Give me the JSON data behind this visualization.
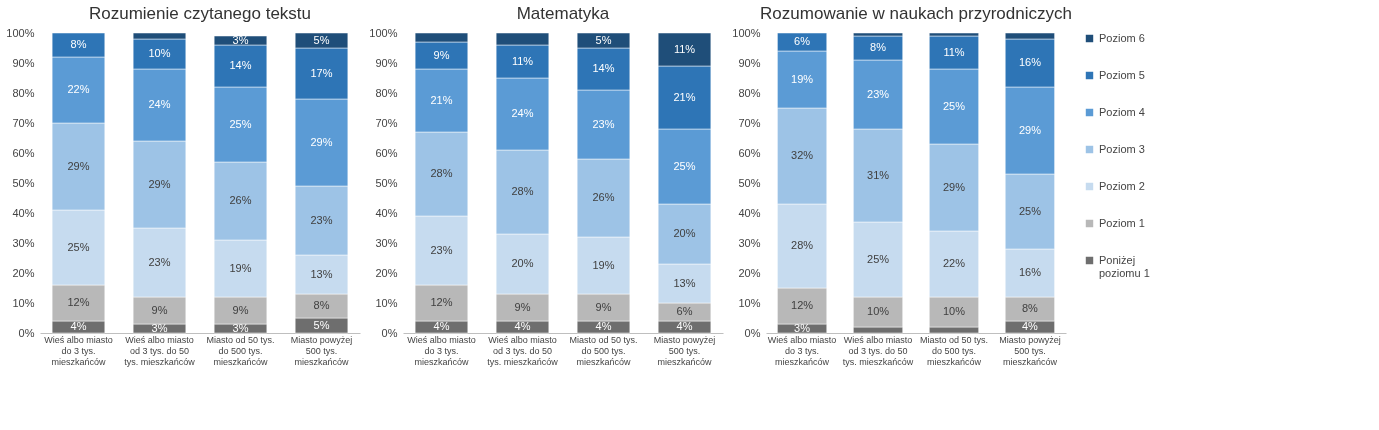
{
  "chart_data": [
    {
      "type": "bar",
      "stacked": true,
      "title": "Rozumienie czytanego tekstu",
      "grid": false,
      "categories": [
        "Wieś albo miasto do 3 tys. mieszkańców",
        "Wieś albo miasto od 3 tys. do 50 tys. mieszkańców",
        "Miasto od 50 tys. do 500 tys. mieszkańców",
        "Miasto powyżej 500 tys. mieszkańców"
      ],
      "ylim": [
        0,
        100
      ],
      "yticks": [
        {
          "value": 0,
          "label": "0%"
        },
        {
          "value": 10,
          "label": "10%"
        },
        {
          "value": 20,
          "label": "20%"
        },
        {
          "value": 30,
          "label": "30%"
        },
        {
          "value": 40,
          "label": "40%"
        },
        {
          "value": 50,
          "label": "50%"
        },
        {
          "value": 60,
          "label": "60%"
        },
        {
          "value": 70,
          "label": "70%"
        },
        {
          "value": 80,
          "label": "80%"
        },
        {
          "value": 90,
          "label": "90%"
        },
        {
          "value": 100,
          "label": "100%"
        }
      ],
      "series": [
        {
          "color": "#6e6e6e",
          "values": [
            4,
            3,
            3,
            5
          ],
          "value_labels": [
            "4%",
            "3%",
            "3%",
            "5%"
          ]
        },
        {
          "color": "#b8b8b8",
          "values": [
            12,
            9,
            9,
            8
          ],
          "value_labels": [
            "12%",
            "9%",
            "9%",
            "8%"
          ]
        },
        {
          "color": "#c6dbef",
          "values": [
            25,
            23,
            19,
            13
          ],
          "value_labels": [
            "25%",
            "23%",
            "19%",
            "13%"
          ]
        },
        {
          "color": "#9dc3e6",
          "values": [
            29,
            29,
            26,
            23
          ],
          "value_labels": [
            "29%",
            "29%",
            "26%",
            "23%"
          ]
        },
        {
          "color": "#5b9bd5",
          "values": [
            22,
            24,
            25,
            29
          ],
          "value_labels": [
            "22%",
            "24%",
            "25%",
            "29%"
          ]
        },
        {
          "color": "#2e75b6",
          "values": [
            8,
            10,
            14,
            17
          ],
          "value_labels": [
            "8%",
            "10%",
            "14%",
            "17%"
          ]
        },
        {
          "color": "#1f4e79",
          "values": [
            null,
            2,
            3,
            5
          ],
          "value_labels": [
            null,
            null,
            "3%",
            "5%"
          ]
        }
      ]
    },
    {
      "type": "bar",
      "stacked": true,
      "title": "Matematyka",
      "grid": false,
      "categories": [
        "Wieś albo miasto do 3 tys. mieszkańców",
        "Wieś albo miasto od 3 tys. do 50 tys. mieszkańców",
        "Miasto od 50 tys. do 500 tys. mieszkańców",
        "Miasto powyżej 500 tys. mieszkańców"
      ],
      "ylim": [
        0,
        100
      ],
      "yticks": [
        {
          "value": 0,
          "label": "0%"
        },
        {
          "value": 10,
          "label": "10%"
        },
        {
          "value": 20,
          "label": "20%"
        },
        {
          "value": 30,
          "label": "30%"
        },
        {
          "value": 40,
          "label": "40%"
        },
        {
          "value": 50,
          "label": "50%"
        },
        {
          "value": 60,
          "label": "60%"
        },
        {
          "value": 70,
          "label": "70%"
        },
        {
          "value": 80,
          "label": "80%"
        },
        {
          "value": 90,
          "label": "90%"
        },
        {
          "value": 100,
          "label": "100%"
        }
      ],
      "series": [
        {
          "color": "#6e6e6e",
          "values": [
            4,
            4,
            4,
            4
          ],
          "value_labels": [
            "4%",
            "4%",
            "4%",
            "4%"
          ]
        },
        {
          "color": "#b8b8b8",
          "values": [
            12,
            9,
            9,
            6
          ],
          "value_labels": [
            "12%",
            "9%",
            "9%",
            "6%"
          ]
        },
        {
          "color": "#c6dbef",
          "values": [
            23,
            20,
            19,
            13
          ],
          "value_labels": [
            "23%",
            "20%",
            "19%",
            "13%"
          ]
        },
        {
          "color": "#9dc3e6",
          "values": [
            28,
            28,
            26,
            20
          ],
          "value_labels": [
            "28%",
            "28%",
            "26%",
            "20%"
          ]
        },
        {
          "color": "#5b9bd5",
          "values": [
            21,
            24,
            23,
            25
          ],
          "value_labels": [
            "21%",
            "24%",
            "23%",
            "25%"
          ]
        },
        {
          "color": "#2e75b6",
          "values": [
            9,
            11,
            14,
            21
          ],
          "value_labels": [
            "9%",
            "11%",
            "14%",
            "21%"
          ]
        },
        {
          "color": "#1f4e79",
          "values": [
            3,
            4,
            5,
            11
          ],
          "value_labels": [
            null,
            null,
            "5%",
            "11%"
          ]
        }
      ]
    },
    {
      "type": "bar",
      "stacked": true,
      "title": "Rozumowanie w naukach przyrodniczych",
      "legend": "right",
      "grid": false,
      "categories": [
        "Wieś albo miasto do 3 tys. mieszkańców",
        "Wieś albo miasto od 3 tys. do 50 tys. mieszkańców",
        "Miasto od 50 tys. do 500 tys. mieszkańców",
        "Miasto powyżej 500 tys. mieszkańców"
      ],
      "ylim": [
        0,
        100
      ],
      "yticks": [
        {
          "value": 0,
          "label": "0%"
        },
        {
          "value": 10,
          "label": "10%"
        },
        {
          "value": 20,
          "label": "20%"
        },
        {
          "value": 30,
          "label": "30%"
        },
        {
          "value": 40,
          "label": "40%"
        },
        {
          "value": 50,
          "label": "50%"
        },
        {
          "value": 60,
          "label": "60%"
        },
        {
          "value": 70,
          "label": "70%"
        },
        {
          "value": 80,
          "label": "80%"
        },
        {
          "value": 90,
          "label": "90%"
        },
        {
          "value": 100,
          "label": "100%"
        }
      ],
      "series": [
        {
          "name": "Poniżej poziomu 1",
          "color": "#6e6e6e",
          "values": [
            3,
            2,
            2,
            4
          ],
          "value_labels": [
            "3%",
            null,
            null,
            "4%"
          ]
        },
        {
          "name": "Poziom 1",
          "color": "#b8b8b8",
          "values": [
            12,
            10,
            10,
            8
          ],
          "value_labels": [
            "12%",
            "10%",
            "10%",
            "8%"
          ]
        },
        {
          "name": "Poziom 2",
          "color": "#c6dbef",
          "values": [
            28,
            25,
            22,
            16
          ],
          "value_labels": [
            "28%",
            "25%",
            "22%",
            "16%"
          ]
        },
        {
          "name": "Poziom 3",
          "color": "#9dc3e6",
          "values": [
            32,
            31,
            29,
            25
          ],
          "value_labels": [
            "32%",
            "31%",
            "29%",
            "25%"
          ]
        },
        {
          "name": "Poziom 4",
          "color": "#5b9bd5",
          "values": [
            19,
            23,
            25,
            29
          ],
          "value_labels": [
            "19%",
            "23%",
            "25%",
            "29%"
          ]
        },
        {
          "name": "Poziom 5",
          "color": "#2e75b6",
          "values": [
            6,
            8,
            11,
            16
          ],
          "value_labels": [
            "6%",
            "8%",
            "11%",
            "16%"
          ]
        },
        {
          "name": "Poziom 6",
          "color": "#1f4e79",
          "values": [
            null,
            1,
            1,
            2
          ],
          "value_labels": [
            null,
            null,
            null,
            null
          ]
        }
      ]
    }
  ]
}
